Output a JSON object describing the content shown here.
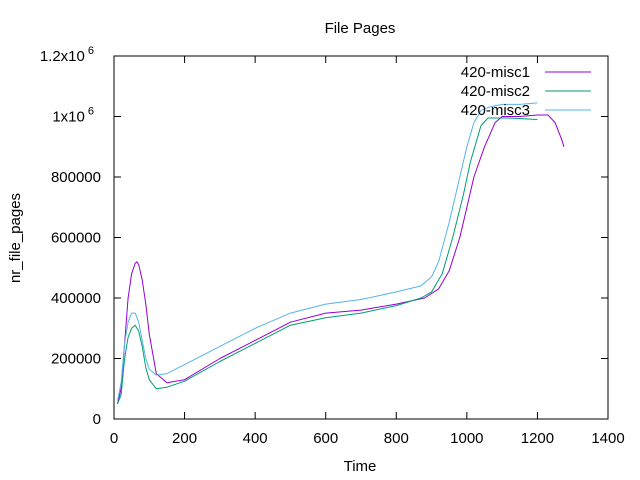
{
  "chart_data": {
    "type": "line",
    "title": "File Pages",
    "xlabel": "Time",
    "ylabel": "nr_file_pages",
    "xlim": [
      0,
      1400
    ],
    "ylim": [
      0,
      1200000
    ],
    "xticks": [
      0,
      200,
      400,
      600,
      800,
      1000,
      1200,
      1400
    ],
    "yticks": [
      {
        "value": 0,
        "label": "0"
      },
      {
        "value": 200000,
        "label": "200000"
      },
      {
        "value": 400000,
        "label": "400000"
      },
      {
        "value": 600000,
        "label": "600000"
      },
      {
        "value": 800000,
        "label": "800000"
      },
      {
        "value": 1000000,
        "label": "1x10",
        "exp": "6"
      },
      {
        "value": 1200000,
        "label": "1.2x10",
        "exp": "6"
      }
    ],
    "grid": false,
    "legend_position": "top-right",
    "series": [
      {
        "name": "420-misc1",
        "color": "#9400d3",
        "x": [
          10,
          20,
          30,
          40,
          50,
          60,
          65,
          70,
          80,
          90,
          100,
          120,
          150,
          200,
          300,
          400,
          500,
          600,
          700,
          800,
          880,
          920,
          950,
          980,
          1000,
          1020,
          1050,
          1080,
          1100,
          1150,
          1200,
          1230,
          1250,
          1260,
          1270,
          1275
        ],
        "y": [
          50000,
          100000,
          250000,
          400000,
          480000,
          515000,
          520000,
          510000,
          460000,
          380000,
          280000,
          150000,
          120000,
          130000,
          200000,
          260000,
          320000,
          350000,
          360000,
          380000,
          400000,
          430000,
          490000,
          600000,
          700000,
          800000,
          900000,
          980000,
          1000000,
          1000000,
          1005000,
          1005000,
          980000,
          950000,
          920000,
          900000
        ]
      },
      {
        "name": "420-misc2",
        "color": "#009e73",
        "x": [
          10,
          20,
          30,
          40,
          50,
          60,
          70,
          80,
          90,
          100,
          120,
          150,
          200,
          300,
          400,
          500,
          600,
          700,
          800,
          870,
          900,
          930,
          960,
          990,
          1010,
          1040,
          1060,
          1080,
          1120,
          1200
        ],
        "y": [
          50000,
          80000,
          200000,
          270000,
          300000,
          310000,
          290000,
          240000,
          170000,
          130000,
          100000,
          105000,
          125000,
          190000,
          250000,
          310000,
          335000,
          350000,
          375000,
          400000,
          420000,
          480000,
          600000,
          740000,
          850000,
          970000,
          995000,
          995000,
          995000,
          990000
        ]
      },
      {
        "name": "420-misc3",
        "color": "#56b4e9",
        "x": [
          10,
          20,
          30,
          40,
          50,
          60,
          70,
          80,
          90,
          100,
          120,
          150,
          200,
          300,
          400,
          500,
          600,
          700,
          800,
          870,
          900,
          920,
          950,
          980,
          1000,
          1020,
          1040,
          1060,
          1100,
          1150,
          1200
        ],
        "y": [
          60000,
          120000,
          250000,
          320000,
          350000,
          350000,
          320000,
          260000,
          200000,
          165000,
          145000,
          150000,
          180000,
          240000,
          300000,
          350000,
          380000,
          395000,
          420000,
          440000,
          470000,
          520000,
          650000,
          800000,
          900000,
          980000,
          1020000,
          1030000,
          1040000,
          1040000,
          1045000
        ]
      }
    ]
  }
}
